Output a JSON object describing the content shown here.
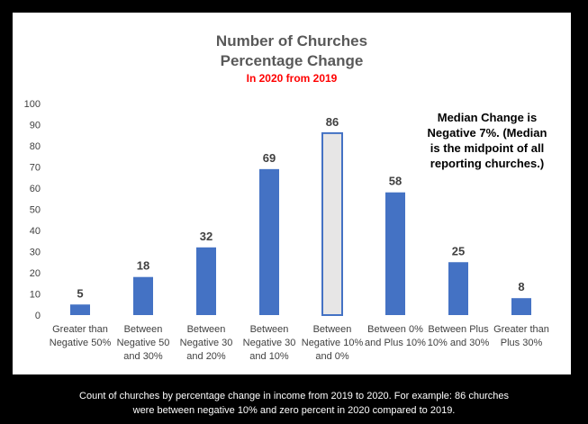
{
  "chart_data": {
    "type": "bar",
    "title": [
      "Number of Churches",
      "Percentage Change"
    ],
    "subtitle": "In 2020 from 2019",
    "categories": [
      [
        "Greater than",
        "Negative 50%"
      ],
      [
        "Between",
        "Negative 50",
        "and 30%"
      ],
      [
        "Between",
        "Negative 30",
        "and 20%"
      ],
      [
        "Between",
        "Negative 30",
        "and 10%"
      ],
      [
        "Between",
        "Negative 10%",
        "and 0%"
      ],
      [
        "Between 0%",
        "and Plus 10%"
      ],
      [
        "Between Plus",
        "10% and 30%"
      ],
      [
        "Greater than",
        "Plus 30%"
      ]
    ],
    "values": [
      5,
      18,
      32,
      69,
      86,
      58,
      25,
      8
    ],
    "highlight_index": 4,
    "ylim": [
      0,
      100
    ],
    "yticks": [
      0,
      10,
      20,
      30,
      40,
      50,
      60,
      70,
      80,
      90,
      100
    ],
    "xlabel": "",
    "ylabel": "",
    "grid": false,
    "annotation": [
      "Median Change is",
      "Negative 7%.  (Median",
      "is the midpoint of all",
      "reporting churches.)"
    ],
    "colors": {
      "bar": "#4472c4",
      "highlight_fill": "#e7e6e6",
      "highlight_stroke": "#4472c4",
      "title": "#595959",
      "subtitle": "#ff0000",
      "axis_text": "#404040"
    }
  },
  "caption": [
    "Count of churches by percentage change in income from 2019 to 2020.  For example:  86 churches",
    "were between negative 10% and zero percent in 2020 compared to 2019."
  ]
}
